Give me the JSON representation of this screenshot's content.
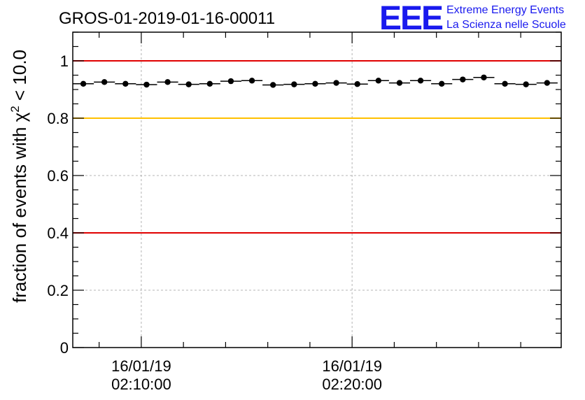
{
  "chart_data": {
    "type": "scatter",
    "title": "GROS-01-2019-01-16-00011",
    "ylabel_prefix": "fraction of events with ",
    "ylabel_symbol": "χ",
    "ylabel_sup": "2",
    "ylabel_suffix": " < 10.0",
    "xlabel": "",
    "ylim": [
      0,
      1.1
    ],
    "xlim_minutes": [
      6.75,
      29.92
    ],
    "yticks": [
      {
        "value": 0,
        "label": "0"
      },
      {
        "value": 0.2,
        "label": "0.2"
      },
      {
        "value": 0.4,
        "label": "0.4"
      },
      {
        "value": 0.6,
        "label": "0.6"
      },
      {
        "value": 0.8,
        "label": "0.8"
      },
      {
        "value": 1,
        "label": "1"
      }
    ],
    "xticks": [
      {
        "minute": 10,
        "date": "16/01/19",
        "time": "02:10:00"
      },
      {
        "minute": 20,
        "date": "16/01/19",
        "time": "02:20:00"
      }
    ],
    "grid": true,
    "reference_lines": [
      {
        "y": 1.0,
        "color": "#e00000"
      },
      {
        "y": 0.8,
        "color": "#ffc000"
      },
      {
        "y": 0.4,
        "color": "#e00000"
      }
    ],
    "bin_width_minutes": 1.0,
    "x_minutes": [
      7.25,
      8.25,
      9.25,
      10.25,
      11.25,
      12.25,
      13.25,
      14.25,
      15.25,
      16.25,
      17.25,
      18.25,
      19.25,
      20.25,
      21.25,
      22.25,
      23.25,
      24.25,
      25.25,
      26.25,
      27.25,
      28.25,
      29.25
    ],
    "values": [
      0.92,
      0.926,
      0.92,
      0.917,
      0.926,
      0.918,
      0.92,
      0.929,
      0.931,
      0.916,
      0.918,
      0.92,
      0.923,
      0.919,
      0.931,
      0.923,
      0.931,
      0.92,
      0.935,
      0.942,
      0.92,
      0.918,
      0.923
    ]
  },
  "logo": {
    "text": "EEE",
    "line1": "Extreme Energy Events",
    "line2": "La Scienza nelle Scuole",
    "color": "#1a1aee"
  }
}
